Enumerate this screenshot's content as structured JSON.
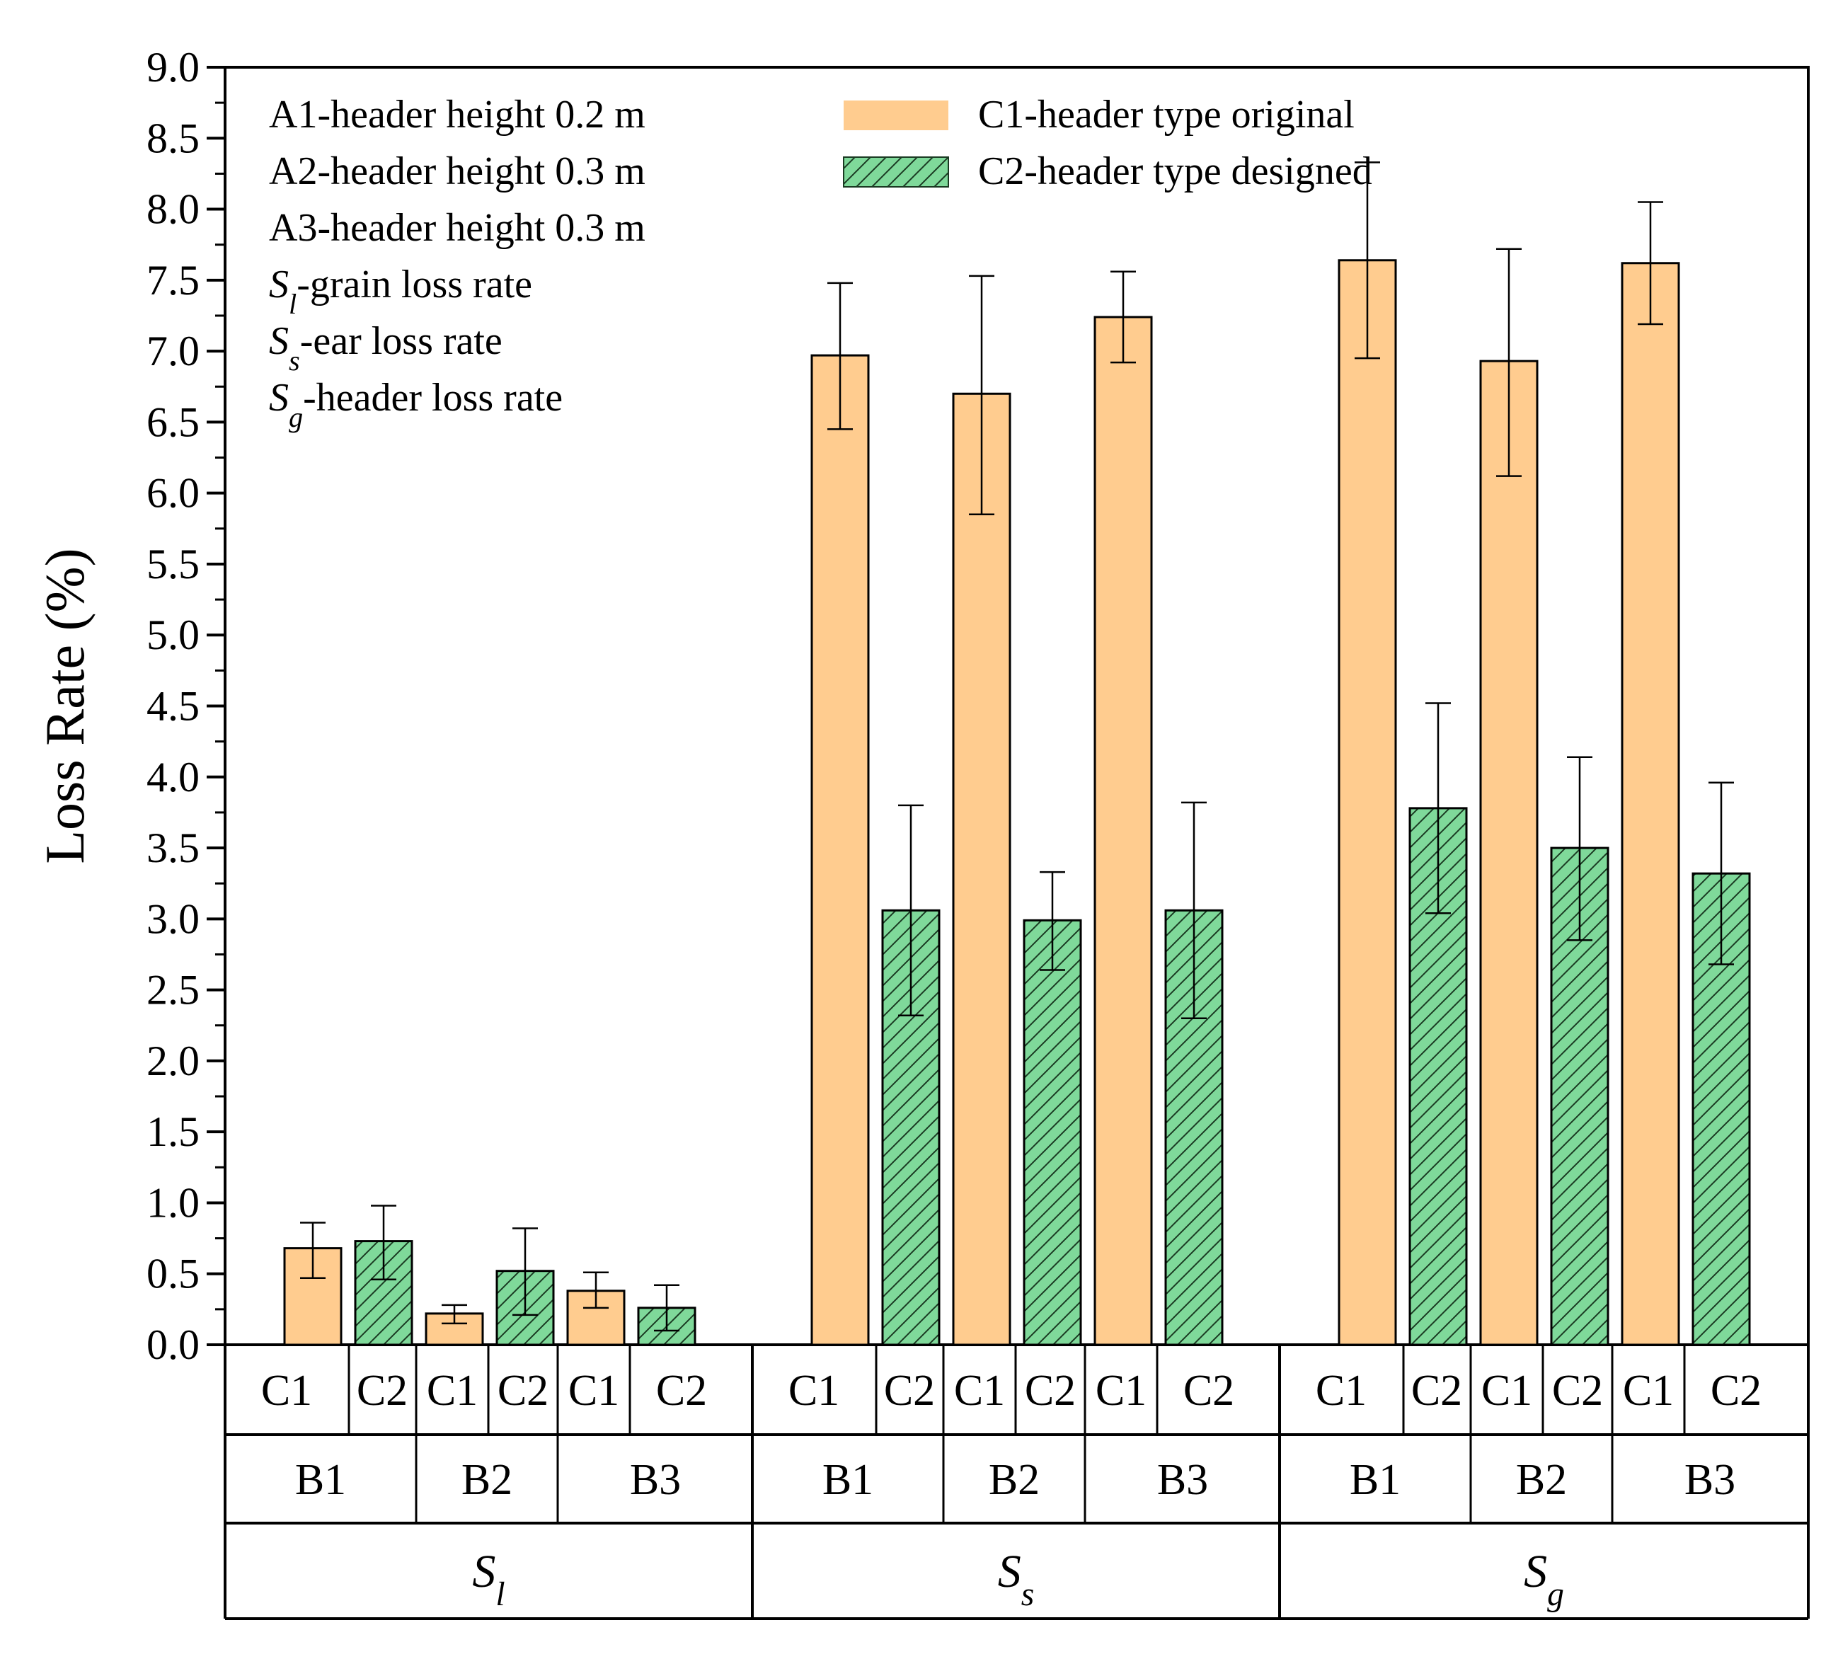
{
  "chart_data": {
    "type": "bar",
    "title": "",
    "xlabel": "",
    "ylabel": "Loss Rate (%)",
    "ylim": [
      0,
      9.0
    ],
    "ytick_step": 0.5,
    "yticks": [
      "0.0",
      "0.5",
      "1.0",
      "1.5",
      "2.0",
      "2.5",
      "3.0",
      "3.5",
      "4.0",
      "4.5",
      "5.0",
      "5.5",
      "6.0",
      "6.5",
      "7.0",
      "7.5",
      "8.0",
      "8.5",
      "9.0"
    ],
    "colors": {
      "C1": "#ffcc8f",
      "C2": "#7fd99a",
      "hatch": "#1a3a22",
      "axis": "#000000"
    },
    "level_labels": {
      "type": [
        "C1",
        "C2",
        "C1",
        "C2",
        "C1",
        "C2"
      ],
      "blades": [
        "B1",
        "B2",
        "B3"
      ]
    },
    "groups": [
      {
        "label_main": "S",
        "label_sub": "l",
        "key": "Sl",
        "bars": [
          {
            "blade": "B1",
            "type": "C1",
            "value": 0.68,
            "err_low": 0.47,
            "err_high": 0.86
          },
          {
            "blade": "B1",
            "type": "C2",
            "value": 0.73,
            "err_low": 0.46,
            "err_high": 0.98
          },
          {
            "blade": "B2",
            "type": "C1",
            "value": 0.22,
            "err_low": 0.15,
            "err_high": 0.28
          },
          {
            "blade": "B2",
            "type": "C2",
            "value": 0.52,
            "err_low": 0.21,
            "err_high": 0.82
          },
          {
            "blade": "B3",
            "type": "C1",
            "value": 0.38,
            "err_low": 0.26,
            "err_high": 0.51
          },
          {
            "blade": "B3",
            "type": "C2",
            "value": 0.26,
            "err_low": 0.1,
            "err_high": 0.42
          }
        ]
      },
      {
        "label_main": "S",
        "label_sub": "s",
        "key": "Ss",
        "bars": [
          {
            "blade": "B1",
            "type": "C1",
            "value": 6.97,
            "err_low": 6.45,
            "err_high": 7.48
          },
          {
            "blade": "B1",
            "type": "C2",
            "value": 3.06,
            "err_low": 2.32,
            "err_high": 3.8
          },
          {
            "blade": "B2",
            "type": "C1",
            "value": 6.7,
            "err_low": 5.85,
            "err_high": 7.53
          },
          {
            "blade": "B2",
            "type": "C2",
            "value": 2.99,
            "err_low": 2.64,
            "err_high": 3.33
          },
          {
            "blade": "B3",
            "type": "C1",
            "value": 7.24,
            "err_low": 6.92,
            "err_high": 7.56
          },
          {
            "blade": "B3",
            "type": "C2",
            "value": 3.06,
            "err_low": 2.3,
            "err_high": 3.82
          }
        ]
      },
      {
        "label_main": "S",
        "label_sub": "g",
        "key": "Sg",
        "bars": [
          {
            "blade": "B1",
            "type": "C1",
            "value": 7.64,
            "err_low": 6.95,
            "err_high": 8.33
          },
          {
            "blade": "B1",
            "type": "C2",
            "value": 3.78,
            "err_low": 3.04,
            "err_high": 4.52
          },
          {
            "blade": "B2",
            "type": "C1",
            "value": 6.93,
            "err_low": 6.12,
            "err_high": 7.72
          },
          {
            "blade": "B2",
            "type": "C2",
            "value": 3.5,
            "err_low": 2.85,
            "err_high": 4.14
          },
          {
            "blade": "B3",
            "type": "C1",
            "value": 7.62,
            "err_low": 7.19,
            "err_high": 8.05
          },
          {
            "blade": "B3",
            "type": "C2",
            "value": 3.32,
            "err_low": 2.68,
            "err_high": 3.96
          }
        ]
      }
    ],
    "legend": {
      "placement": "top",
      "notes": [
        {
          "main": "A1-header height 0.2 m",
          "sub": ""
        },
        {
          "main": "A2-header height 0.3 m",
          "sub": ""
        },
        {
          "main": "A3-header height 0.3 m",
          "sub": ""
        },
        {
          "main": "S",
          "sub": "l",
          "rest": "-grain loss rate"
        },
        {
          "main": "S",
          "sub": "s",
          "rest": "-ear loss rate"
        },
        {
          "main": "S",
          "sub": "g",
          "rest": "-header loss rate"
        }
      ],
      "series": [
        {
          "name": "C1-header type original",
          "key": "C1"
        },
        {
          "name": "C2-header type designed",
          "key": "C2"
        }
      ]
    }
  }
}
